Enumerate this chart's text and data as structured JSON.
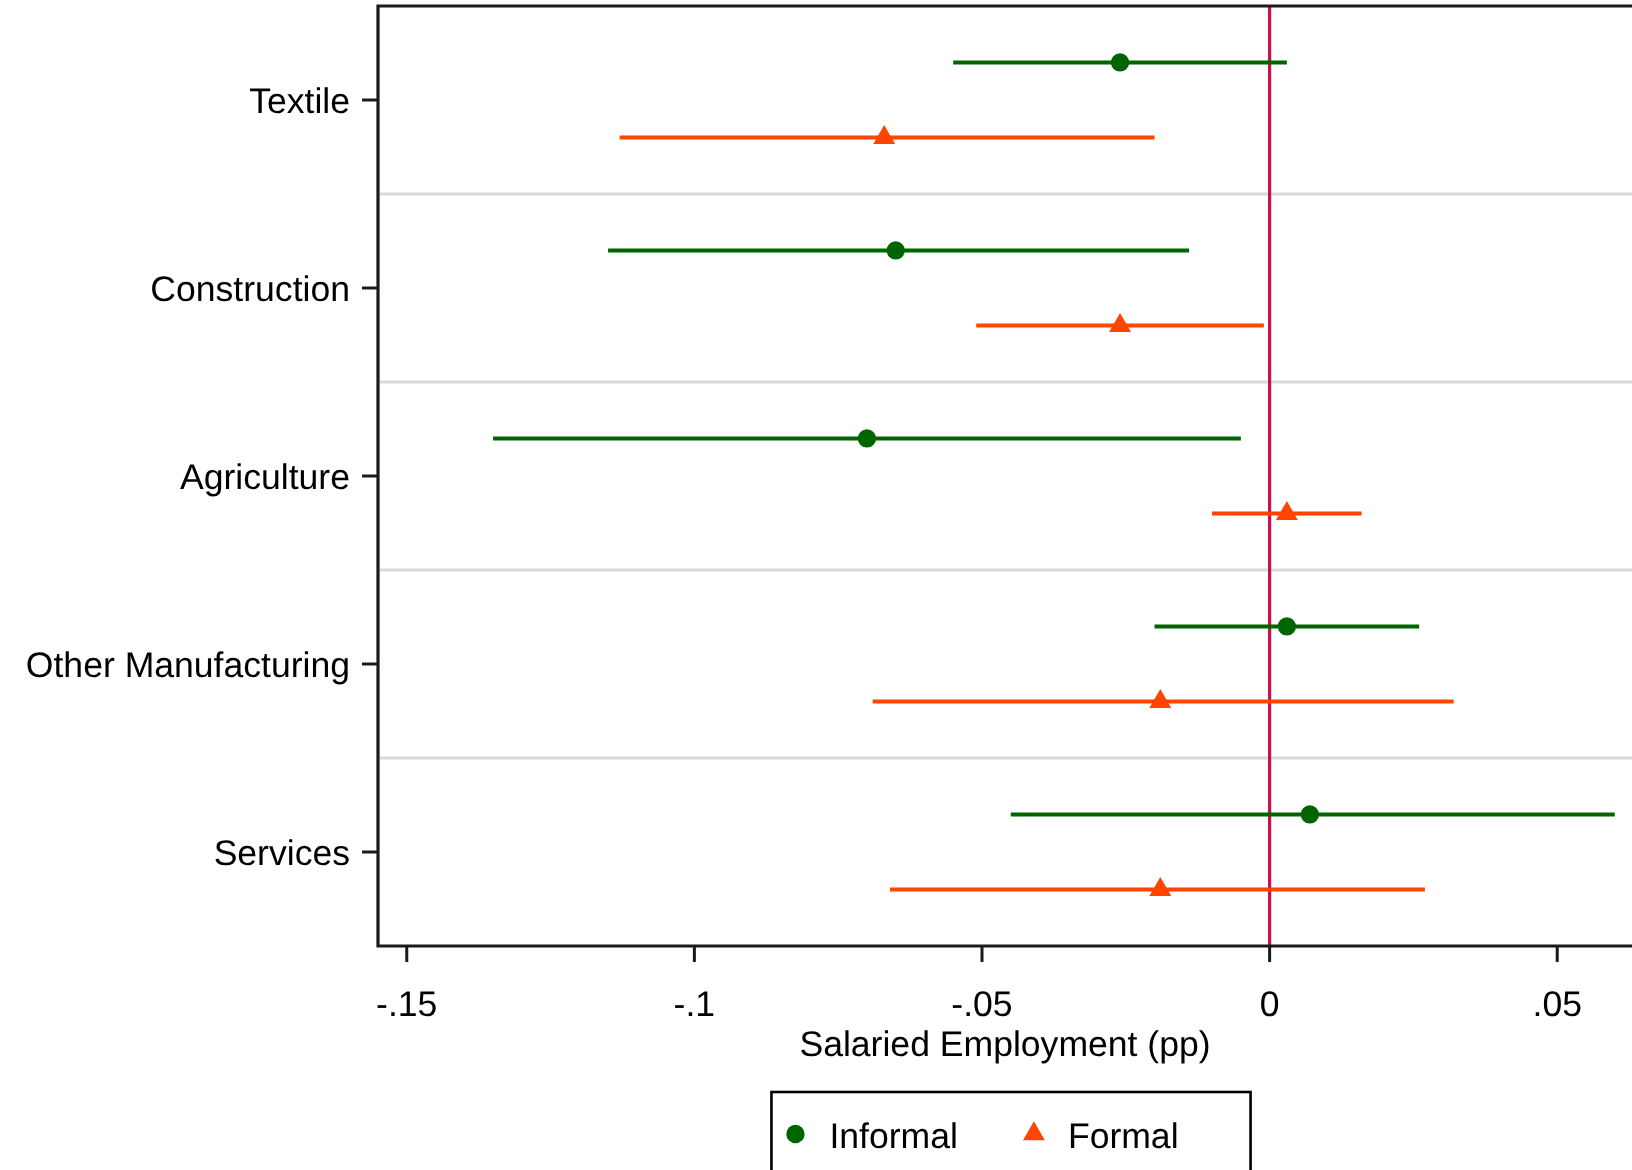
{
  "chart_data": {
    "type": "scatter",
    "orientation": "horizontal",
    "xlabel": "Salaried Employment (pp)",
    "categories": [
      "Textile",
      "Construction",
      "Agriculture",
      "Other Manufacturing",
      "Services"
    ],
    "series": [
      {
        "name": "Informal",
        "color": "#006400",
        "marker": "circle",
        "values": [
          -0.026,
          -0.065,
          -0.07,
          0.003,
          0.007
        ],
        "errors": [
          [
            -0.055,
            0.003
          ],
          [
            -0.115,
            -0.014
          ],
          [
            -0.135,
            -0.005
          ],
          [
            -0.02,
            0.026
          ],
          [
            -0.045,
            0.06
          ]
        ]
      },
      {
        "name": "Formal",
        "color": "#ff4500",
        "marker": "triangle",
        "values": [
          -0.067,
          -0.026,
          0.003,
          -0.019,
          -0.019
        ],
        "errors": [
          [
            -0.113,
            -0.02
          ],
          [
            -0.051,
            -0.001
          ],
          [
            -0.01,
            0.016
          ],
          [
            -0.069,
            0.032
          ],
          [
            -0.066,
            0.027
          ]
        ]
      }
    ],
    "xlim": [
      -0.155,
      0.063
    ],
    "xticks": [
      {
        "value": -0.15,
        "label": "-.15"
      },
      {
        "value": -0.1,
        "label": "-.1"
      },
      {
        "value": -0.05,
        "label": "-.05"
      },
      0,
      {
        "value": 0.05,
        "label": ".05"
      }
    ],
    "ref_lines": [
      {
        "axis": "x",
        "value": 0,
        "color": "#c8104a"
      }
    ],
    "grid": "y",
    "legend": "bottom"
  }
}
